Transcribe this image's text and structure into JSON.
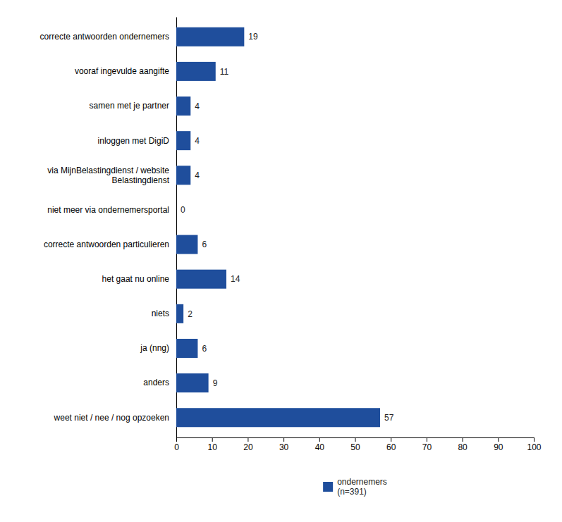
{
  "chart_data": {
    "type": "bar",
    "orientation": "horizontal",
    "categories": [
      "correcte antwoorden ondernemers",
      "vooraf ingevulde aangifte",
      "samen met je partner",
      "inloggen met DigiD",
      "via MijnBelastingdienst / website\nBelastingdienst",
      "niet meer via ondernemersportal",
      "correcte antwoorden particulieren",
      "het gaat nu online",
      "niets",
      "ja (nng)",
      "anders",
      "weet niet / nee / nog opzoeken"
    ],
    "series": [
      {
        "name": "ondernemers\n(n=391)",
        "color": "#1F4E9C",
        "values": [
          19,
          11,
          4,
          4,
          4,
          0,
          6,
          14,
          2,
          6,
          9,
          57
        ]
      }
    ],
    "xlim": [
      0,
      100
    ],
    "xticks": [
      0,
      10,
      20,
      30,
      40,
      50,
      60,
      70,
      80,
      90,
      100
    ],
    "data_labels": true,
    "grid": false,
    "legend": "bottom"
  }
}
